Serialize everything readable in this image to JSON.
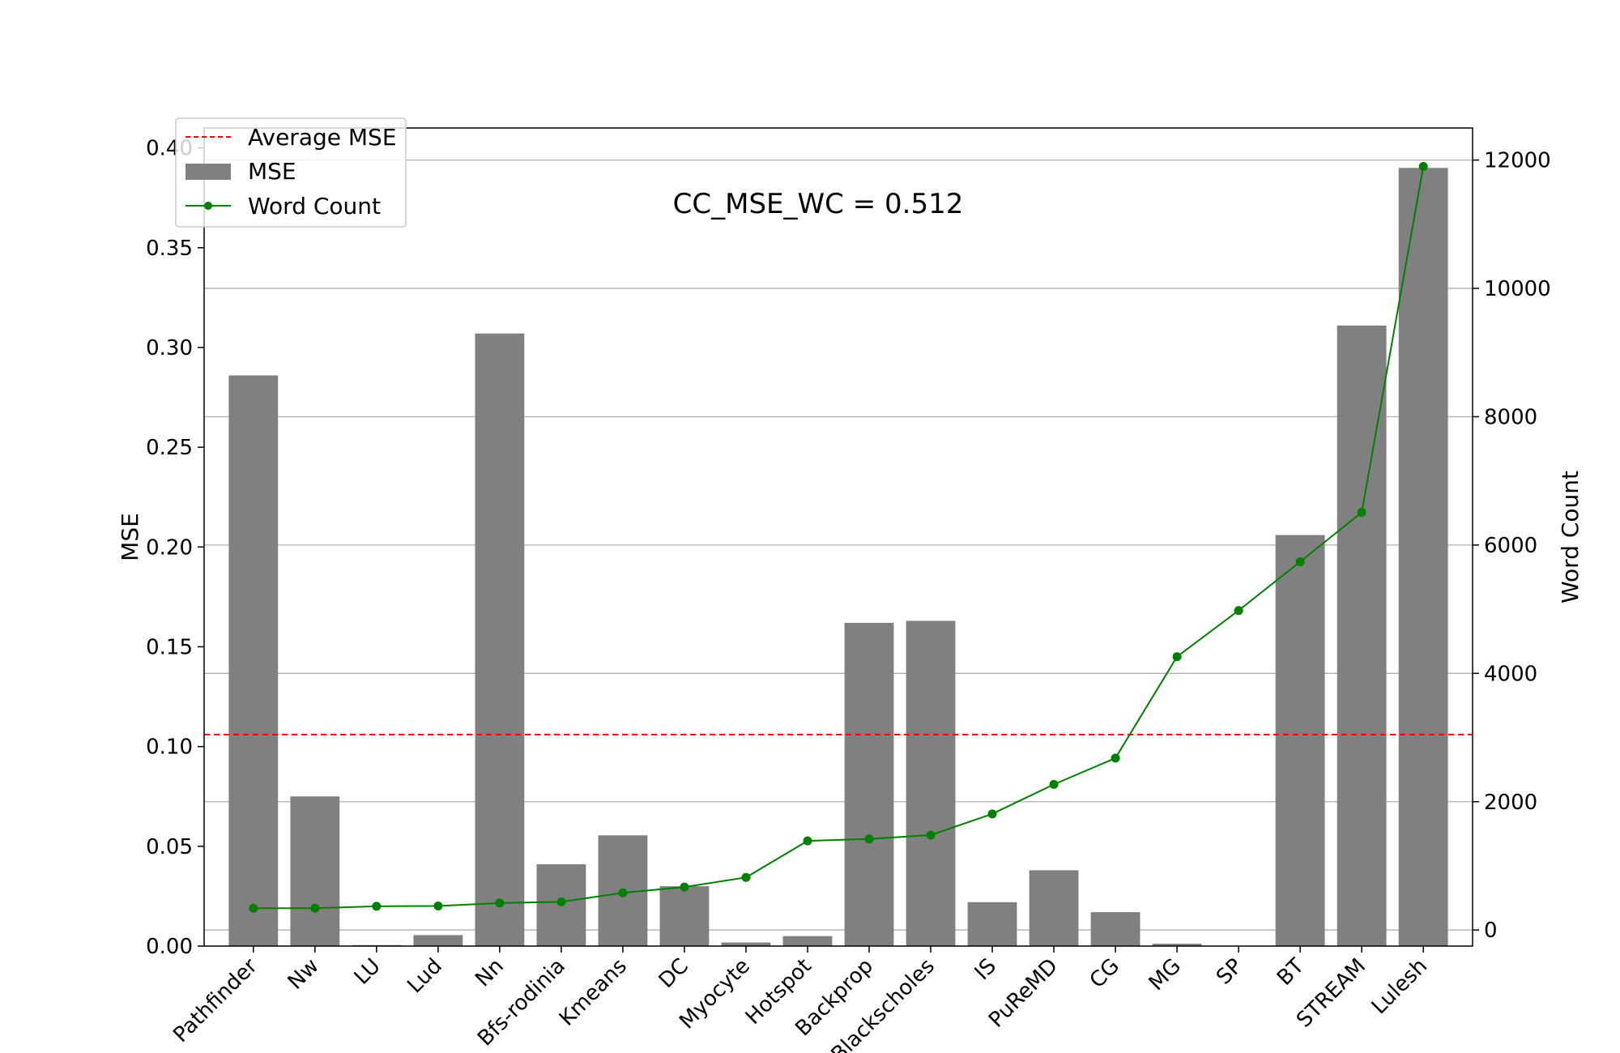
{
  "chart_data": {
    "type": "bar",
    "annotation": "CC_MSE_WC = 0.512",
    "ylabel": "MSE",
    "y2label": "Word Count",
    "ylim": [
      0,
      0.41
    ],
    "y2lim": [
      -250,
      12500
    ],
    "grid": "horizontal (right axis)",
    "legend_position": "top-left",
    "categories": [
      "Pathfinder",
      "Nw",
      "LU",
      "Lud",
      "Nn",
      "Bfs-rodinia",
      "Kmeans",
      "DC",
      "Myocyte",
      "Hotspot",
      "Backprop",
      "Blackscholes",
      "IS",
      "PuReMD",
      "CG",
      "MG",
      "SP",
      "BT",
      "STREAM",
      "Lulesh"
    ],
    "yticks": [
      "0.00",
      "0.05",
      "0.10",
      "0.15",
      "0.20",
      "0.25",
      "0.30",
      "0.35",
      "0.40"
    ],
    "y2ticks": [
      "0",
      "2000",
      "4000",
      "6000",
      "8000",
      "10000",
      "12000"
    ],
    "series": [
      {
        "name": "MSE",
        "kind": "bar",
        "axis": "left",
        "color": "#808080",
        "values": [
          0.286,
          0.075,
          0.0005,
          0.0055,
          0.307,
          0.041,
          0.0555,
          0.03,
          0.0018,
          0.005,
          0.162,
          0.163,
          0.022,
          0.038,
          0.017,
          0.0012,
          0.0,
          0.206,
          0.311,
          0.39
        ]
      },
      {
        "name": "Word Count",
        "kind": "line",
        "axis": "right",
        "color": "#008000",
        "values": [
          340,
          340,
          370,
          375,
          420,
          440,
          580,
          670,
          820,
          1390,
          1420,
          1480,
          1810,
          2270,
          2680,
          4260,
          4980,
          5740,
          6510,
          11900
        ]
      },
      {
        "name": "Average MSE",
        "kind": "hline",
        "axis": "left",
        "color": "#ff0000",
        "value": 0.106
      }
    ],
    "legend": [
      "Average MSE",
      "MSE",
      "Word Count"
    ]
  }
}
